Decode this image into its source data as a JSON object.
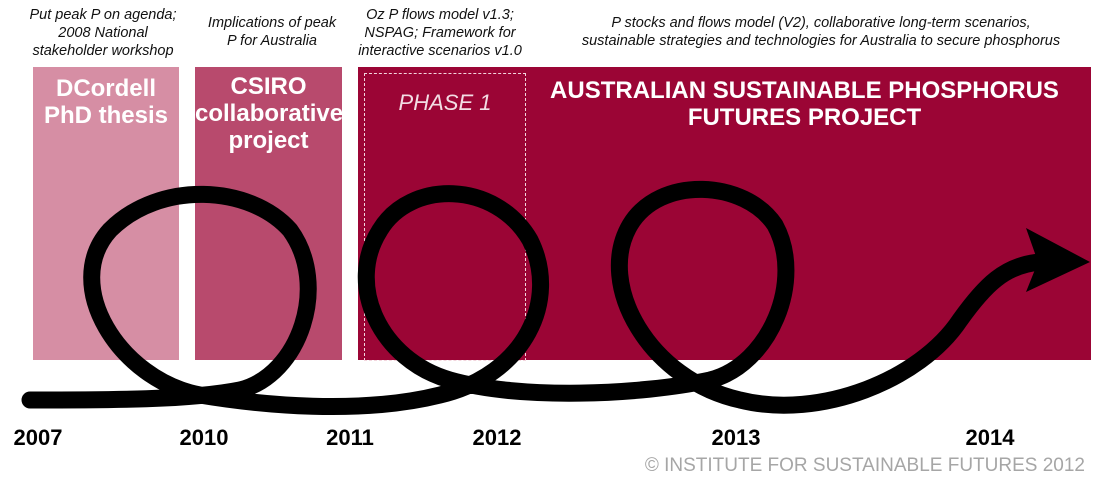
{
  "captions": [
    "Put peak P on agenda;\n2008 National\nstakeholder workshop",
    "Implications of peak\nP for Australia",
    "Oz P flows model v1.3;\nNSPAG; Framework for\ninteractive scenarios v1.0",
    "P stocks and flows model (V2), collaborative long-term scenarios,\nsustainable strategies and technologies for Australia to secure phosphorus"
  ],
  "blocks": {
    "phd": {
      "title": "DCordell\nPhD thesis",
      "color": "#d68ea4"
    },
    "csiro": {
      "title": "CSIRO\ncollaborative\nproject",
      "color": "#b84a6d"
    },
    "aspf": {
      "title": "AUSTRALIAN SUSTAINABLE PHOSPHORUS\nFUTURES PROJECT",
      "color": "#9b0535"
    }
  },
  "phase": {
    "label": "PHASE 1"
  },
  "years": [
    "2007",
    "2010",
    "2011",
    "2012",
    "2013",
    "2014"
  ],
  "copyright": "© INSTITUTE FOR SUSTAINABLE FUTURES 2012",
  "colors": {
    "spiral": "#000000",
    "background": "#ffffff"
  }
}
